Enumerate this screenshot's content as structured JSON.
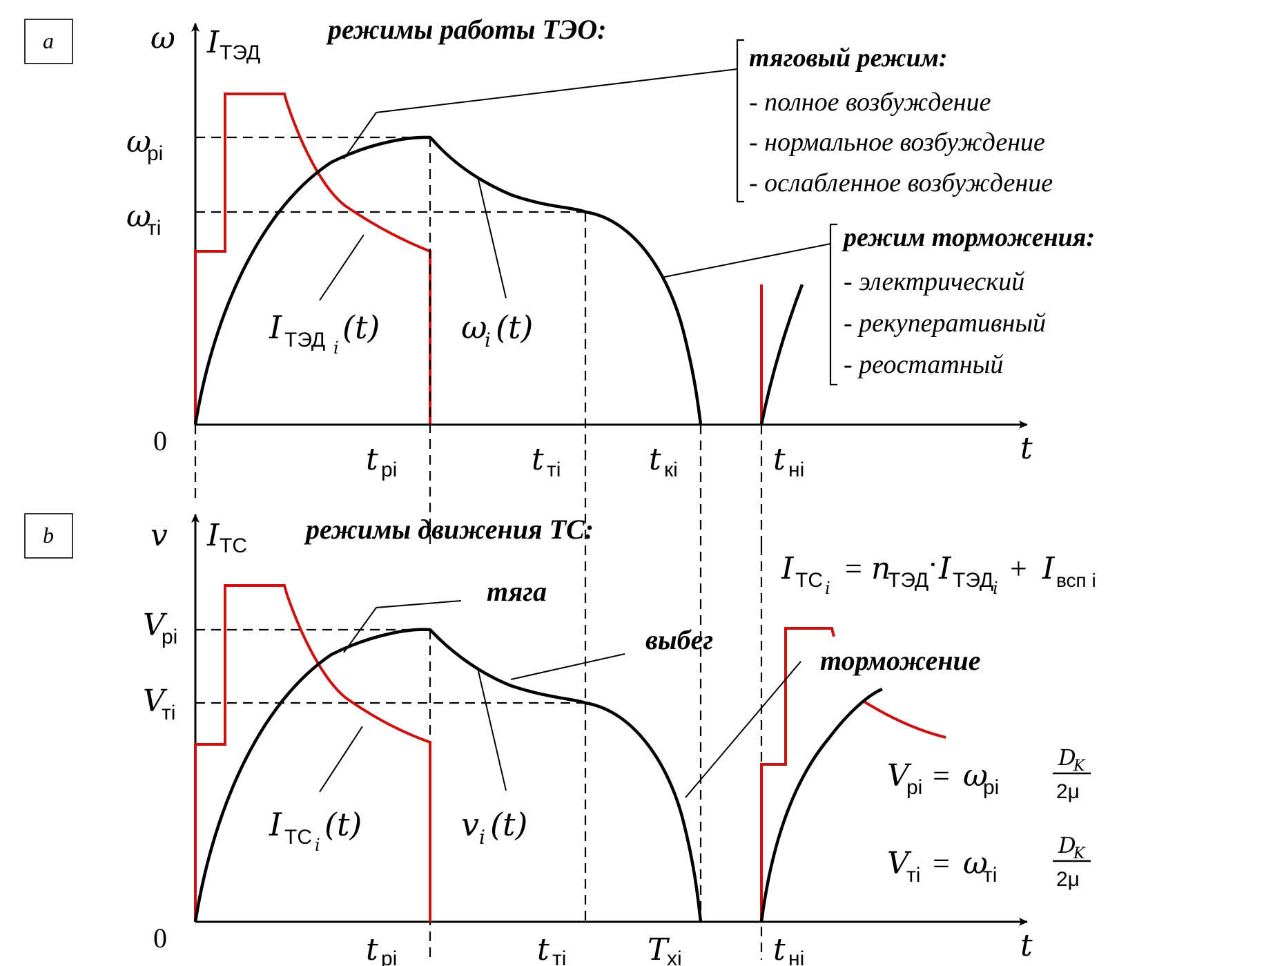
{
  "panel_a": {
    "label": "a",
    "axis_y_omega": "ω",
    "axis_y_current": "I",
    "axis_y_current_sub": "ТЭД",
    "axis_x": "t",
    "origin": "0",
    "heading": "режимы работы ТЭО:",
    "tick_omega_p": "ω",
    "tick_omega_p_sub": "pi",
    "tick_omega_t": "ω",
    "tick_omega_t_sub": "тi",
    "x_ticks": [
      {
        "main": "t",
        "sub": "pi"
      },
      {
        "main": "t",
        "sub": "тi"
      },
      {
        "main": "t",
        "sub": "кi"
      },
      {
        "main": "t",
        "sub": "нi"
      }
    ],
    "curve_current_label_main": "I",
    "curve_current_label_sub": "ТЭД",
    "curve_current_label_subsub": "i",
    "curve_current_label_arg": "(t)",
    "curve_omega_label_main": "ω",
    "curve_omega_label_sub": "i",
    "curve_omega_label_arg": "(t)",
    "traction_title": "тяговый режим:",
    "traction_items": [
      "- полное возбуждение",
      "- нормальное возбуждение",
      "- ослабленное возбуждение"
    ],
    "braking_title": "режим торможения:",
    "braking_items": [
      "- электрический",
      "- рекуперативный",
      "- реостатный"
    ]
  },
  "panel_b": {
    "label": "b",
    "axis_y_v": "v",
    "axis_y_current": "I",
    "axis_y_current_sub": "ТС",
    "axis_x": "t",
    "origin": "0",
    "heading": "режимы движения ТС:",
    "tick_v_p": "V",
    "tick_v_p_sub": "pi",
    "tick_v_t": "V",
    "tick_v_t_sub": "тi",
    "x_ticks": [
      {
        "main": "t",
        "sub": "pi"
      },
      {
        "main": "t",
        "sub": "тi"
      },
      {
        "main": "T",
        "sub": "xi"
      },
      {
        "main": "t",
        "sub": "нi"
      }
    ],
    "mode_traction": "тяга",
    "mode_coast": "выбег",
    "mode_braking": "торможение",
    "curve_current_label_main": "I",
    "curve_current_label_sub": "ТС",
    "curve_current_label_subsub": "i",
    "curve_current_label_arg": "(t)",
    "curve_v_label_main": "v",
    "curve_v_label_sub": "i",
    "curve_v_label_arg": "(t)",
    "formula_current": {
      "lhs": "I",
      "lhs_sub": "ТС",
      "lhs_subsub": "i",
      "eq": " = ",
      "n": "n",
      "n_sub": "ТЭД",
      "dot": "·",
      "i2": "I",
      "i2_sub": "ТЭД",
      "i2_subsub": "i",
      "plus": " + ",
      "i3": "I",
      "i3_sub": "всп i"
    },
    "formula_vp": {
      "lhs": "V",
      "lhs_sub": "pi",
      "eq": " = ",
      "w": "ω",
      "w_sub": "pi",
      "num": "D",
      "num_sub": "K",
      "den": "2μ"
    },
    "formula_vt": {
      "lhs": "V",
      "lhs_sub": "тi",
      "eq": " = ",
      "w": "ω",
      "w_sub": "тi",
      "num": "D",
      "num_sub": "K",
      "den": "2μ"
    }
  },
  "colors": {
    "speed_curve": "#000000",
    "current_curve": "#cc1111",
    "axes": "#000000"
  }
}
